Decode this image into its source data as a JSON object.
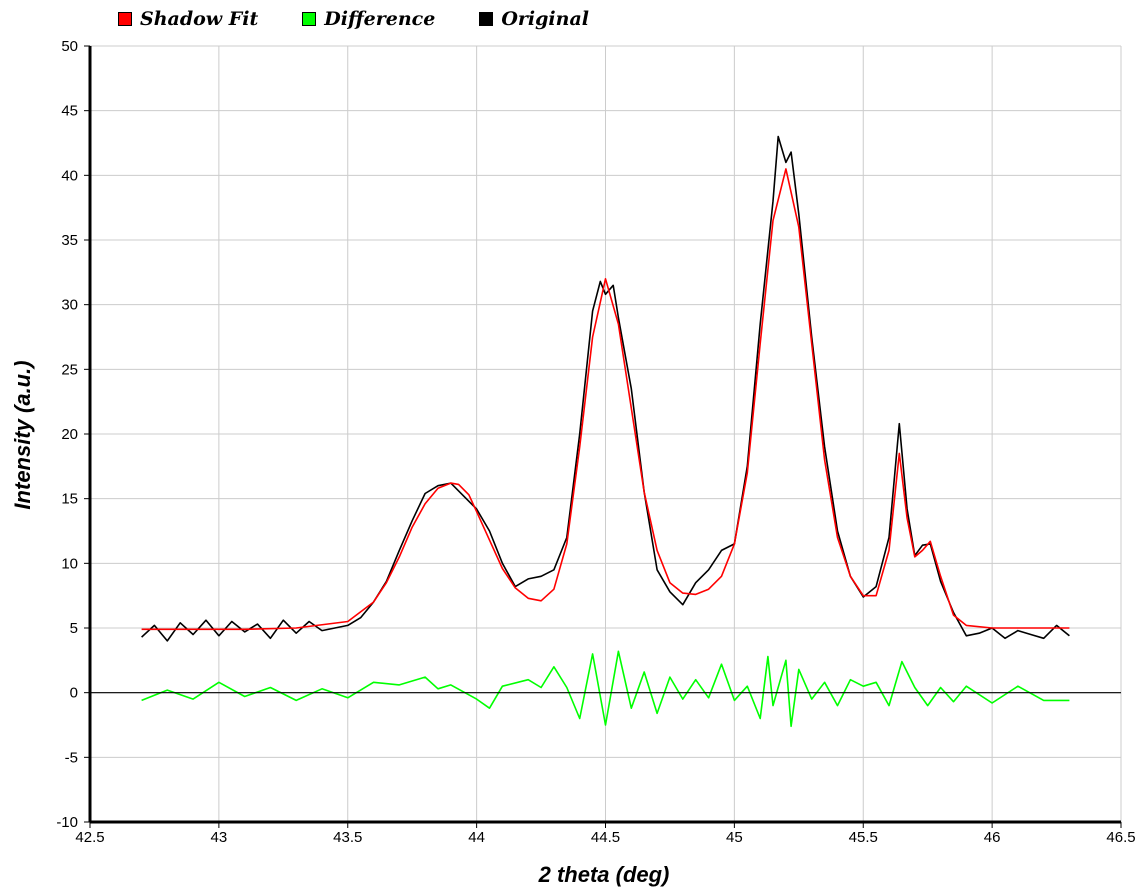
{
  "legend": {
    "items": [
      {
        "label": "Shadow Fit",
        "color": "#ff0000"
      },
      {
        "label": "Difference",
        "color": "#00ff00"
      },
      {
        "label": "Original",
        "color": "#000000"
      }
    ]
  },
  "chart_data": {
    "type": "line",
    "title": "",
    "xlabel": "2 theta (deg)",
    "ylabel": "Intensity (a.u.)",
    "xlim": [
      42.5,
      46.5
    ],
    "ylim": [
      -10,
      50
    ],
    "xticks": [
      "42.5",
      "43",
      "43.5",
      "44",
      "44.5",
      "45",
      "45.5",
      "46",
      "46.5"
    ],
    "yticks": [
      "-10",
      "-5",
      "0",
      "5",
      "10",
      "15",
      "20",
      "25",
      "30",
      "35",
      "40",
      "45",
      "50"
    ],
    "grid": true,
    "legend_position": "top-left",
    "zero_line": true,
    "series": [
      {
        "name": "Shadow Fit",
        "color": "#ff0000",
        "x": [
          42.7,
          42.9,
          43.1,
          43.3,
          43.5,
          43.6,
          43.65,
          43.7,
          43.75,
          43.8,
          43.85,
          43.9,
          43.93,
          43.97,
          44.0,
          44.05,
          44.1,
          44.15,
          44.2,
          44.25,
          44.3,
          44.35,
          44.4,
          44.45,
          44.5,
          44.55,
          44.6,
          44.65,
          44.7,
          44.75,
          44.8,
          44.85,
          44.9,
          44.95,
          45.0,
          45.05,
          45.1,
          45.15,
          45.2,
          45.25,
          45.3,
          45.35,
          45.4,
          45.45,
          45.5,
          45.55,
          45.6,
          45.64,
          45.67,
          45.7,
          45.73,
          45.76,
          45.8,
          45.85,
          45.9,
          46.0,
          46.1,
          46.3
        ],
        "values": [
          4.9,
          4.9,
          4.9,
          5.0,
          5.5,
          7.0,
          8.5,
          10.5,
          12.8,
          14.6,
          15.8,
          16.2,
          16.1,
          15.3,
          14.0,
          11.8,
          9.6,
          8.1,
          7.3,
          7.1,
          8.0,
          11.5,
          19.0,
          27.5,
          32.0,
          28.5,
          22.0,
          15.5,
          11.0,
          8.5,
          7.7,
          7.6,
          8.0,
          9.0,
          11.5,
          17.0,
          27.0,
          36.5,
          40.5,
          36.0,
          27.0,
          18.0,
          12.0,
          9.0,
          7.5,
          7.5,
          11.0,
          18.5,
          13.5,
          10.5,
          11.0,
          11.7,
          9.0,
          6.0,
          5.2,
          5.0,
          5.0,
          5.0
        ]
      },
      {
        "name": "Difference",
        "color": "#00ff00",
        "x": [
          42.7,
          42.8,
          42.9,
          43.0,
          43.1,
          43.2,
          43.3,
          43.4,
          43.5,
          43.6,
          43.7,
          43.8,
          43.85,
          43.9,
          44.0,
          44.05,
          44.1,
          44.2,
          44.25,
          44.3,
          44.35,
          44.4,
          44.45,
          44.5,
          44.55,
          44.6,
          44.65,
          44.7,
          44.75,
          44.8,
          44.85,
          44.9,
          44.95,
          45.0,
          45.05,
          45.1,
          45.13,
          45.15,
          45.2,
          45.22,
          45.25,
          45.3,
          45.35,
          45.4,
          45.45,
          45.5,
          45.55,
          45.6,
          45.65,
          45.7,
          45.75,
          45.8,
          45.85,
          45.9,
          46.0,
          46.1,
          46.2,
          46.3
        ],
        "values": [
          -0.6,
          0.2,
          -0.5,
          0.8,
          -0.3,
          0.4,
          -0.6,
          0.3,
          -0.4,
          0.8,
          0.6,
          1.2,
          0.3,
          0.6,
          -0.5,
          -1.2,
          0.5,
          1.0,
          0.4,
          2.0,
          0.4,
          -2.0,
          3.0,
          -2.5,
          3.2,
          -1.2,
          1.6,
          -1.6,
          1.2,
          -0.5,
          1.0,
          -0.4,
          2.2,
          -0.6,
          0.5,
          -2.0,
          2.8,
          -1.0,
          2.5,
          -2.6,
          1.8,
          -0.5,
          0.8,
          -1.0,
          1.0,
          0.5,
          0.8,
          -1.0,
          2.4,
          0.4,
          -1.0,
          0.4,
          -0.7,
          0.5,
          -0.8,
          0.5,
          -0.6,
          -0.6
        ]
      },
      {
        "name": "Original",
        "color": "#000000",
        "x": [
          42.7,
          42.75,
          42.8,
          42.85,
          42.9,
          42.95,
          43.0,
          43.05,
          43.1,
          43.15,
          43.2,
          43.25,
          43.3,
          43.35,
          43.4,
          43.45,
          43.5,
          43.55,
          43.6,
          43.65,
          43.7,
          43.75,
          43.8,
          43.85,
          43.9,
          43.93,
          43.97,
          44.0,
          44.05,
          44.1,
          44.15,
          44.2,
          44.25,
          44.3,
          44.35,
          44.4,
          44.45,
          44.48,
          44.5,
          44.53,
          44.55,
          44.6,
          44.65,
          44.7,
          44.75,
          44.8,
          44.85,
          44.9,
          44.95,
          45.0,
          45.05,
          45.1,
          45.15,
          45.17,
          45.2,
          45.22,
          45.25,
          45.3,
          45.35,
          45.4,
          45.45,
          45.5,
          45.55,
          45.6,
          45.64,
          45.67,
          45.7,
          45.73,
          45.76,
          45.8,
          45.85,
          45.9,
          45.95,
          46.0,
          46.05,
          46.1,
          46.15,
          46.2,
          46.25,
          46.3
        ],
        "values": [
          4.3,
          5.2,
          4.0,
          5.4,
          4.5,
          5.6,
          4.4,
          5.5,
          4.7,
          5.3,
          4.2,
          5.6,
          4.6,
          5.5,
          4.8,
          5.0,
          5.2,
          5.8,
          7.0,
          8.6,
          11.0,
          13.3,
          15.4,
          16.0,
          16.2,
          15.6,
          14.8,
          14.2,
          12.5,
          10.0,
          8.2,
          8.8,
          9.0,
          9.5,
          12.0,
          20.0,
          29.5,
          31.8,
          30.8,
          31.5,
          29.0,
          23.5,
          15.5,
          9.5,
          7.8,
          6.8,
          8.5,
          9.5,
          11.0,
          11.5,
          17.5,
          28.5,
          38.0,
          43.0,
          41.0,
          41.8,
          37.0,
          27.5,
          19.0,
          12.5,
          9.0,
          7.4,
          8.2,
          12.0,
          20.8,
          14.2,
          10.6,
          11.4,
          11.5,
          8.6,
          6.2,
          4.4,
          4.6,
          5.0,
          4.2,
          4.8,
          4.5,
          4.2,
          5.2,
          4.4
        ]
      }
    ]
  }
}
